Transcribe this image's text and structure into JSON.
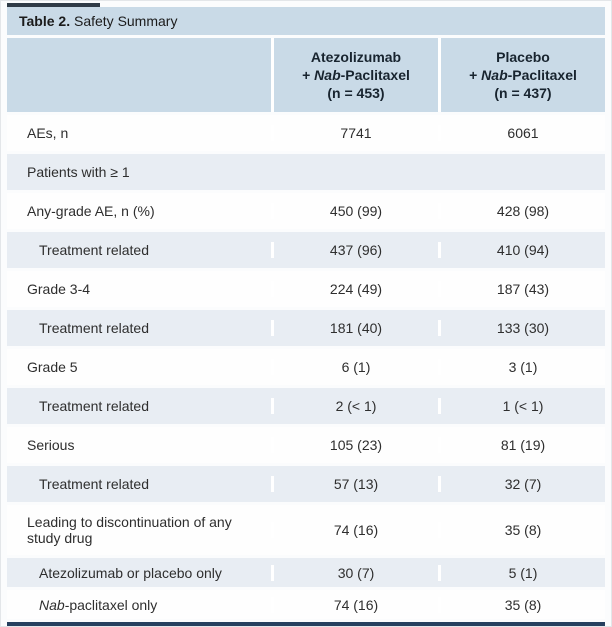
{
  "title": {
    "prefix": "Table 2.",
    "rest": " Safety Summary"
  },
  "header": {
    "col1": {
      "line1": "Atezolizumab",
      "line2_pre": "+ ",
      "line2_italic": "Nab",
      "line2_post": "-Paclitaxel",
      "line3": "(n = 453)"
    },
    "col2": {
      "line1": "Placebo",
      "line2_pre": "+ ",
      "line2_italic": "Nab",
      "line2_post": "-Paclitaxel",
      "line3": "(n = 437)"
    }
  },
  "colors": {
    "header_blue": "#c9dae7",
    "alt_row": "#e8edf3",
    "white_row": "#fefefe",
    "border_navy": "#26405f"
  },
  "rows": [
    {
      "label": "AEs, n",
      "v1": "7741",
      "v2": "6061"
    },
    {
      "label": "Patients with ≥ 1"
    },
    {
      "label": "Any-grade AE, n (%)",
      "v1": "450 (99)",
      "v2": "428 (98)"
    },
    {
      "label": "Treatment related",
      "v1": "437 (96)",
      "v2": "410 (94)"
    },
    {
      "label": "Grade 3-4",
      "v1": "224 (49)",
      "v2": "187 (43)"
    },
    {
      "label": "Treatment related",
      "v1": "181 (40)",
      "v2": "133 (30)"
    },
    {
      "label": "Grade 5",
      "v1": "6 (1)",
      "v2": "3 (1)"
    },
    {
      "label": "Treatment related",
      "v1": "2 (< 1)",
      "v2": "1 (< 1)"
    },
    {
      "label": "Serious",
      "v1": "105 (23)",
      "v2": "81 (19)"
    },
    {
      "label": "Treatment related",
      "v1": "57 (13)",
      "v2": "32 (7)"
    },
    {
      "label": "Leading to discontinuation of any study drug",
      "v1": "74 (16)",
      "v2": "35 (8)"
    },
    {
      "label": "Atezolizumab or placebo only",
      "v1": "30 (7)",
      "v2": "5 (1)"
    },
    {
      "label_italic": "Nab",
      "label_rest": "-paclitaxel only",
      "v1": "74 (16)",
      "v2": "35 (8)"
    }
  ],
  "chart_data": {
    "type": "table",
    "title": "Table 2. Safety Summary",
    "columns": [
      "",
      "Atezolizumab + Nab-Paclitaxel (n = 453)",
      "Placebo + Nab-Paclitaxel (n = 437)"
    ],
    "rows": [
      [
        "AEs, n",
        "7741",
        "6061"
      ],
      [
        "Patients with ≥ 1",
        "",
        ""
      ],
      [
        "Any-grade AE, n (%)",
        "450 (99)",
        "428 (98)"
      ],
      [
        "Treatment related",
        "437 (96)",
        "410 (94)"
      ],
      [
        "Grade 3-4",
        "224 (49)",
        "187 (43)"
      ],
      [
        "Treatment related",
        "181 (40)",
        "133 (30)"
      ],
      [
        "Grade 5",
        "6 (1)",
        "3 (1)"
      ],
      [
        "Treatment related",
        "2 (< 1)",
        "1 (< 1)"
      ],
      [
        "Serious",
        "105 (23)",
        "81 (19)"
      ],
      [
        "Treatment related",
        "57 (13)",
        "32 (7)"
      ],
      [
        "Leading to discontinuation of any study drug",
        "74 (16)",
        "35 (8)"
      ],
      [
        "Atezolizumab or placebo only",
        "30 (7)",
        "5 (1)"
      ],
      [
        "Nab-paclitaxel only",
        "74 (16)",
        "35 (8)"
      ]
    ]
  }
}
